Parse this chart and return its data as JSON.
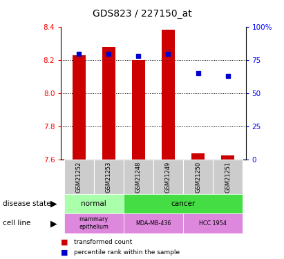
{
  "title": "GDS823 / 227150_at",
  "samples": [
    "GSM21252",
    "GSM21253",
    "GSM21248",
    "GSM21249",
    "GSM21250",
    "GSM21251"
  ],
  "bar_values": [
    8.23,
    8.28,
    8.2,
    8.385,
    7.635,
    7.625
  ],
  "percentile_values": [
    80,
    80,
    78,
    80,
    65,
    63
  ],
  "ymin": 7.6,
  "ymax": 8.4,
  "yticks": [
    7.6,
    7.8,
    8.0,
    8.2,
    8.4
  ],
  "right_ytick_vals": [
    0,
    25,
    50,
    75,
    100
  ],
  "right_ytick_labels": [
    "0",
    "25",
    "50",
    "75",
    "100%"
  ],
  "bar_color": "#cc0000",
  "percentile_color": "#0000cc",
  "bar_width": 0.45,
  "normal_color": "#aaffaa",
  "cancer_color": "#44dd44",
  "cell_line_color": "#dd88dd",
  "sample_bg_color": "#cccccc",
  "title_fontsize": 10,
  "tick_fontsize": 7.5,
  "label_fontsize": 7,
  "annot_fontsize": 7.5
}
